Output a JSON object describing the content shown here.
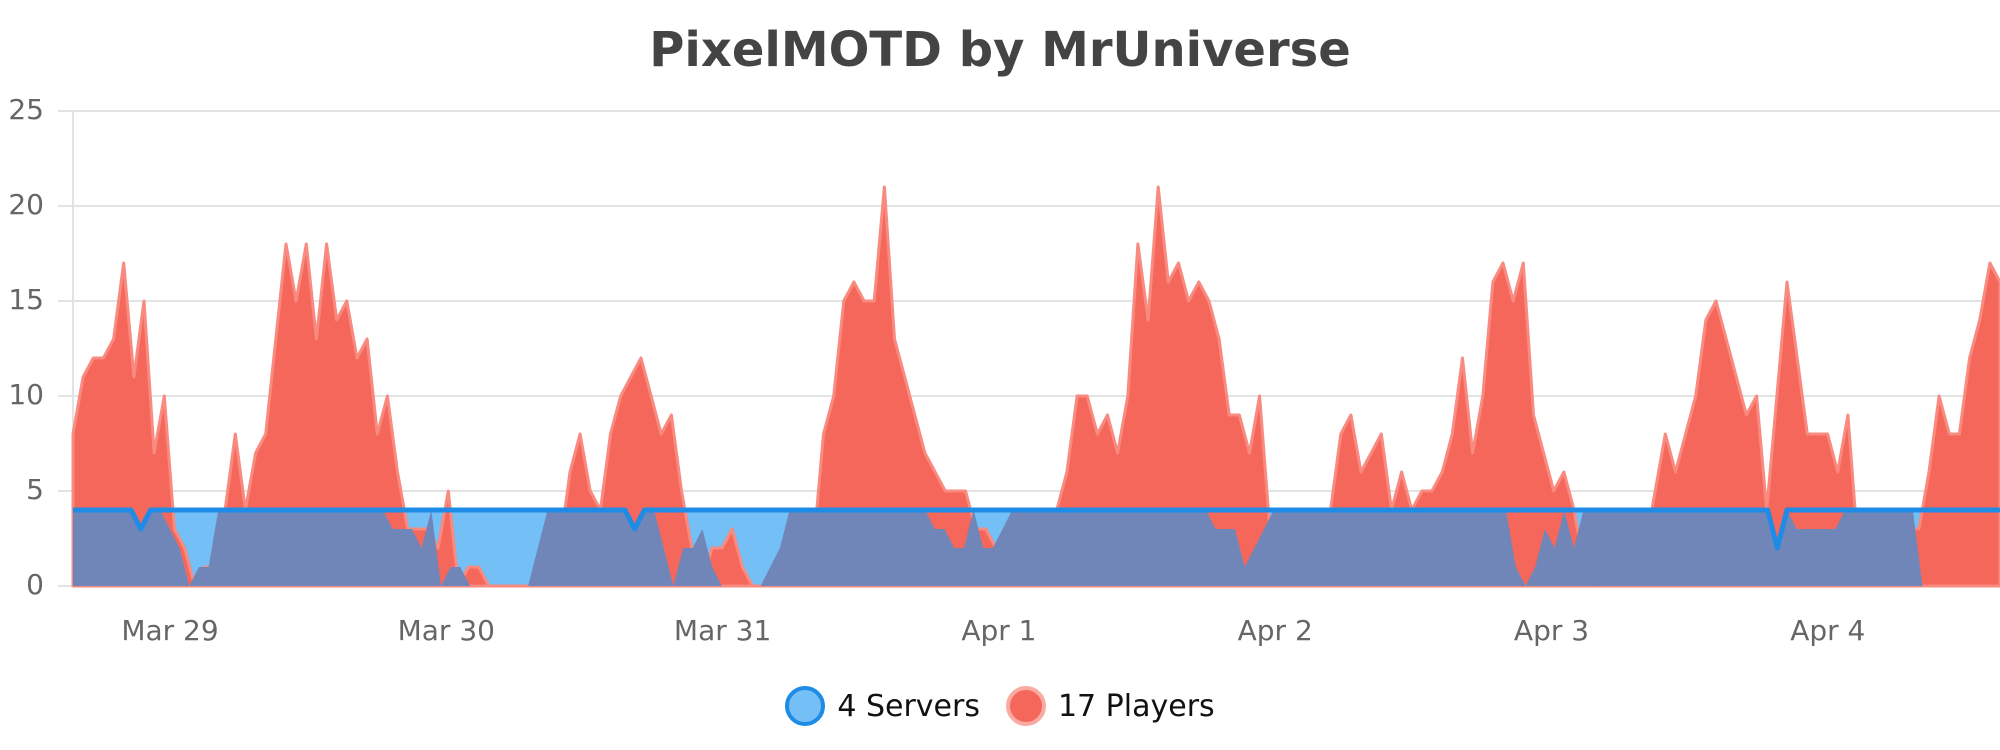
{
  "title": "PixelMOTD by MrUniverse",
  "colors": {
    "servers_fill": "#74bff5",
    "servers_line": "#1e8ce6",
    "players_fill": "#f5675a",
    "players_line": "#f88a80",
    "overlap": "#7086b8",
    "grid": "#e3e3e3"
  },
  "y_axis": {
    "ticks": [
      "0",
      "5",
      "10",
      "15",
      "20",
      "25"
    ]
  },
  "x_axis": {
    "ticks": [
      "Mar 29",
      "Mar 30",
      "Mar 31",
      "Apr 1",
      "Apr 2",
      "Apr 3",
      "Apr 4"
    ]
  },
  "legend": {
    "servers_label": "4 Servers",
    "players_label": "17 Players"
  },
  "chart_data": {
    "type": "area",
    "title": "PixelMOTD by MrUniverse",
    "xlabel": "",
    "ylabel": "",
    "ylim": [
      0,
      25
    ],
    "grid": true,
    "legend_position": "bottom",
    "x_ticks": [
      "Mar 29",
      "Mar 30",
      "Mar 31",
      "Apr 1",
      "Apr 2",
      "Apr 3",
      "Apr 4"
    ],
    "x_range_days": [
      "Mar 28 ~20:00",
      "Apr 5 ~03:00"
    ],
    "series": [
      {
        "name": "4 Servers",
        "current": 4,
        "hourly_from_start": [
          4,
          4,
          4,
          4,
          4,
          4,
          4,
          3,
          4,
          4,
          4,
          4,
          4,
          4,
          4,
          4,
          4,
          4,
          4,
          4,
          4,
          4,
          4,
          4,
          4,
          4,
          4,
          4,
          4,
          4,
          4,
          4,
          4,
          4,
          4,
          4,
          4,
          4,
          4,
          4,
          4,
          4,
          4,
          4,
          4,
          4,
          4,
          4,
          4,
          4,
          4,
          4,
          4,
          4,
          4,
          4,
          4,
          4,
          3,
          4,
          4,
          4,
          4,
          4,
          4,
          4,
          4,
          4,
          4,
          4,
          4,
          4,
          4,
          4,
          4,
          4,
          4,
          4,
          4,
          4,
          4,
          4,
          4,
          4,
          4,
          4,
          4,
          4,
          4,
          4,
          4,
          4,
          4,
          4,
          4,
          4,
          4,
          4,
          4,
          4,
          4,
          4,
          4,
          4,
          4,
          4,
          4,
          4,
          4,
          4,
          4,
          4,
          4,
          4,
          4,
          4,
          4,
          4,
          4,
          4,
          4,
          4,
          4,
          4,
          4,
          4,
          4,
          4,
          4,
          4,
          4,
          4,
          4,
          4,
          4,
          4,
          4,
          4,
          4,
          4,
          4,
          4,
          4,
          4,
          4,
          4,
          4,
          4,
          4,
          4,
          4,
          4,
          4,
          4,
          4,
          4,
          4,
          4,
          4,
          4,
          4,
          4,
          4,
          4,
          4,
          4,
          4,
          4,
          4,
          4,
          4,
          4,
          4,
          4,
          4,
          4,
          2,
          4,
          4,
          4,
          4,
          4,
          4,
          4,
          4,
          4,
          4,
          4,
          4,
          4,
          4,
          4,
          4,
          4,
          4,
          4,
          4,
          4,
          4,
          4
        ]
      },
      {
        "name": "17 Players",
        "current": 17,
        "hourly_from_start": [
          8,
          11,
          12,
          12,
          13,
          17,
          11,
          15,
          7,
          10,
          3,
          2,
          0,
          1,
          1,
          4,
          8,
          4,
          7,
          8,
          13,
          18,
          15,
          18,
          13,
          18,
          14,
          15,
          12,
          13,
          8,
          10,
          6,
          3,
          3,
          3,
          2,
          5,
          0,
          1,
          1,
          0,
          0,
          0,
          0,
          0,
          0,
          0,
          2,
          6,
          8,
          5,
          4,
          8,
          10,
          11,
          12,
          10,
          8,
          9,
          5,
          2,
          0,
          2,
          2,
          3,
          1,
          0,
          0,
          0,
          0,
          0,
          1,
          2,
          8,
          10,
          15,
          16,
          15,
          15,
          21,
          13,
          11,
          9,
          7,
          6,
          5,
          5,
          5,
          3,
          3,
          2,
          2,
          4,
          2,
          2,
          3,
          4,
          6,
          10,
          10,
          8,
          9,
          7,
          10,
          18,
          14,
          21,
          16,
          17,
          15,
          16,
          15,
          13,
          9,
          9,
          7,
          10,
          3,
          3,
          3,
          1,
          2,
          3,
          4,
          8,
          9,
          6,
          7,
          8,
          4,
          6,
          4,
          5,
          5,
          6,
          8,
          12,
          7,
          10,
          16,
          17,
          15,
          17,
          9,
          7,
          5,
          6,
          4,
          1,
          0,
          1,
          3,
          2,
          4,
          2,
          5,
          8,
          6,
          8,
          10,
          14,
          15,
          13,
          11,
          9,
          10,
          4,
          10,
          16,
          12,
          8,
          8,
          8,
          6,
          9,
          2,
          4,
          3,
          3,
          3,
          3,
          3,
          6,
          10,
          8,
          8,
          12,
          14,
          17,
          16
        ]
      }
    ]
  }
}
